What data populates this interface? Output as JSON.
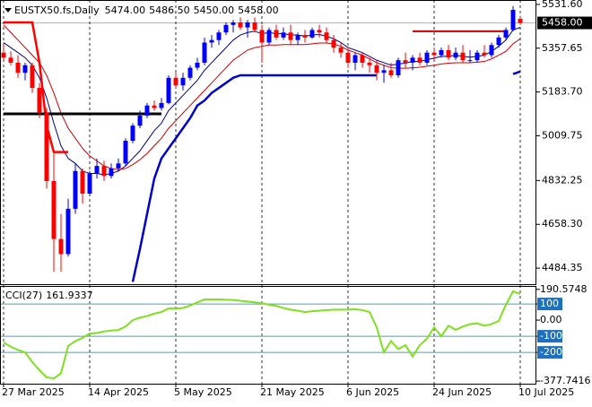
{
  "chart_data": {
    "type": "candlestick",
    "symbol": "EUSTX50.fs,Daily",
    "ohlc_labels": [
      "5474.00",
      "5486.50",
      "5450.00",
      "5458.00"
    ],
    "categories": [
      "27 Mar 2025",
      null,
      null,
      null,
      null,
      null,
      null,
      null,
      null,
      null,
      null,
      null,
      "14 Apr 2025",
      null,
      null,
      null,
      null,
      null,
      null,
      null,
      null,
      null,
      null,
      null,
      "5 May 2025",
      null,
      null,
      null,
      null,
      null,
      null,
      null,
      null,
      null,
      null,
      null,
      "21 May 2025",
      null,
      null,
      null,
      null,
      null,
      null,
      null,
      null,
      null,
      null,
      null,
      "6 Jun 2025",
      null,
      null,
      null,
      null,
      null,
      null,
      null,
      null,
      null,
      null,
      null,
      "24 Jun 2025",
      null,
      null,
      null,
      null,
      null,
      null,
      null,
      null,
      null,
      null,
      null,
      "10 Jul 2025"
    ],
    "open": [
      5340,
      5320,
      5300,
      5260,
      5290,
      5200,
      5100,
      4830,
      4600,
      4540,
      4720,
      4870,
      4780,
      4860,
      4890,
      4850,
      4880,
      4900,
      4990,
      5050,
      5090,
      5130,
      5120,
      5140,
      5240,
      5210,
      5240,
      5280,
      5300,
      5380,
      5390,
      5420,
      5450,
      5460,
      5440,
      5460,
      5430,
      5380,
      5430,
      5400,
      5420,
      5390,
      5410,
      5400,
      5430,
      5420,
      5390,
      5360,
      5340,
      5300,
      5330,
      5300,
      5290,
      5260,
      5270,
      5250,
      5310,
      5300,
      5320,
      5300,
      5340,
      5330,
      5350,
      5320,
      5340,
      5310,
      5310,
      5340,
      5330,
      5370,
      5400,
      5430,
      5474
    ],
    "high": [
      5370,
      5345,
      5330,
      5300,
      5300,
      5220,
      5120,
      4940,
      4700,
      4760,
      4900,
      4880,
      4870,
      4920,
      4910,
      4900,
      4920,
      5000,
      5060,
      5110,
      5140,
      5150,
      5160,
      5250,
      5260,
      5260,
      5290,
      5320,
      5400,
      5410,
      5430,
      5460,
      5470,
      5480,
      5470,
      5480,
      5450,
      5440,
      5450,
      5440,
      5450,
      5420,
      5430,
      5440,
      5450,
      5440,
      5410,
      5380,
      5360,
      5340,
      5340,
      5320,
      5310,
      5290,
      5300,
      5320,
      5340,
      5330,
      5340,
      5350,
      5360,
      5360,
      5370,
      5360,
      5370,
      5350,
      5350,
      5370,
      5380,
      5410,
      5440,
      5525,
      5486.5
    ],
    "low": [
      5310,
      5290,
      5240,
      5230,
      5180,
      5080,
      4800,
      4470,
      4470,
      4530,
      4700,
      4740,
      4770,
      4840,
      4830,
      4840,
      4870,
      4890,
      4980,
      5040,
      5080,
      5110,
      5110,
      5135,
      5200,
      5190,
      5230,
      5270,
      5290,
      5360,
      5370,
      5410,
      5420,
      5430,
      5400,
      5420,
      5300,
      5370,
      5390,
      5390,
      5370,
      5370,
      5380,
      5395,
      5400,
      5380,
      5340,
      5320,
      5280,
      5270,
      5280,
      5260,
      5230,
      5220,
      5240,
      5240,
      5280,
      5270,
      5290,
      5290,
      5310,
      5320,
      5310,
      5310,
      5300,
      5300,
      5300,
      5320,
      5320,
      5360,
      5390,
      5425,
      5450
    ],
    "close": [
      5320,
      5300,
      5260,
      5290,
      5200,
      5100,
      4830,
      4600,
      4540,
      4720,
      4870,
      4780,
      4860,
      4890,
      4850,
      4880,
      4900,
      4990,
      5050,
      5090,
      5130,
      5120,
      5140,
      5240,
      5210,
      5240,
      5280,
      5300,
      5380,
      5390,
      5420,
      5450,
      5460,
      5440,
      5460,
      5430,
      5380,
      5430,
      5400,
      5420,
      5390,
      5410,
      5400,
      5430,
      5420,
      5390,
      5360,
      5340,
      5300,
      5330,
      5300,
      5290,
      5260,
      5270,
      5250,
      5310,
      5300,
      5320,
      5300,
      5340,
      5330,
      5350,
      5320,
      5340,
      5310,
      5310,
      5340,
      5330,
      5370,
      5400,
      5430,
      5510,
      5458
    ],
    "up_color": "#0000ff",
    "down_color": "#ff0000",
    "overlays": [
      {
        "color": "#000080",
        "width": 1,
        "values": [
          5380,
          5360,
          5340,
          5320,
          5290,
          5240,
          5160,
          5060,
          4970,
          4920,
          4900,
          4870,
          4860,
          4860,
          4855,
          4860,
          4870,
          4890,
          4920,
          4950,
          4990,
          5030,
          5060,
          5110,
          5140,
          5170,
          5200,
          5230,
          5270,
          5300,
          5330,
          5360,
          5390,
          5410,
          5420,
          5425,
          5415,
          5420,
          5415,
          5415,
          5410,
          5410,
          5405,
          5410,
          5412,
          5405,
          5395,
          5380,
          5360,
          5350,
          5340,
          5325,
          5310,
          5300,
          5290,
          5295,
          5298,
          5305,
          5305,
          5312,
          5318,
          5325,
          5325,
          5330,
          5325,
          5322,
          5325,
          5330,
          5345,
          5365,
          5390,
          5430,
          5440
        ]
      },
      {
        "color": "#cc0000",
        "width": 1,
        "values": [
          5450,
          5420,
          5390,
          5360,
          5330,
          5300,
          5250,
          5180,
          5100,
          5040,
          5000,
          4960,
          4930,
          4910,
          4890,
          4880,
          4875,
          4880,
          4895,
          4915,
          4940,
          4970,
          5000,
          5040,
          5070,
          5100,
          5130,
          5160,
          5190,
          5220,
          5250,
          5280,
          5310,
          5330,
          5350,
          5360,
          5365,
          5370,
          5370,
          5372,
          5372,
          5372,
          5372,
          5375,
          5378,
          5378,
          5375,
          5365,
          5350,
          5340,
          5330,
          5315,
          5300,
          5290,
          5280,
          5278,
          5278,
          5280,
          5282,
          5286,
          5290,
          5295,
          5298,
          5300,
          5300,
          5300,
          5302,
          5305,
          5315,
          5330,
          5345,
          5375,
          5395
        ]
      },
      {
        "color": "#ff0000",
        "width": 2.5,
        "values": [
          5460,
          5460,
          5460,
          5460,
          5460,
          5300,
          5050,
          4945,
          4945,
          4945,
          null,
          null,
          null,
          null,
          null,
          null,
          null,
          null,
          null,
          null,
          null,
          null,
          null,
          null,
          null,
          null,
          null,
          null,
          null,
          null,
          null,
          null,
          null,
          null,
          null,
          null,
          null,
          null,
          null,
          null,
          null,
          null,
          null,
          null,
          null,
          null,
          null,
          null,
          null,
          null,
          null,
          null,
          null,
          null,
          null,
          null,
          null,
          null,
          null,
          null,
          null,
          null,
          null,
          null,
          null,
          null,
          null,
          null,
          null,
          null,
          null,
          null,
          null
        ]
      },
      {
        "color": "#000000",
        "width": 3,
        "values": [
          5097,
          5097,
          5097,
          5097,
          5097,
          5097,
          5097,
          5097,
          5097,
          5097,
          5097,
          5097,
          5097,
          5097,
          5097,
          5097,
          5097,
          5097,
          5097,
          5097,
          5097,
          5097,
          5097,
          null,
          null,
          null,
          null,
          null,
          null,
          null,
          null,
          null,
          null,
          null,
          null,
          null,
          null,
          null,
          null,
          null,
          null,
          null,
          null,
          null,
          null,
          null,
          null,
          null,
          null,
          null,
          null,
          null,
          null,
          null,
          null,
          null,
          null,
          null,
          null,
          null,
          null,
          null,
          null,
          null,
          null,
          null,
          null,
          null,
          null,
          null,
          null,
          null,
          null
        ]
      },
      {
        "color": "#0000cc",
        "width": 2.5,
        "values": [
          null,
          null,
          null,
          null,
          null,
          null,
          null,
          null,
          null,
          null,
          null,
          null,
          null,
          null,
          null,
          null,
          null,
          null,
          4430,
          4560,
          4700,
          4840,
          4920,
          4960,
          5000,
          5040,
          5080,
          5130,
          5150,
          5180,
          5200,
          5220,
          5240,
          5250,
          5250,
          5250,
          5250,
          5250,
          5250,
          5250,
          5250,
          5250,
          5250,
          5250,
          5250,
          5250,
          5250,
          5250,
          5250,
          5250,
          5250,
          5250,
          5250,
          null,
          null,
          null,
          null,
          null,
          null,
          null,
          null,
          null,
          null,
          null,
          null,
          null,
          null,
          null,
          null,
          null,
          null,
          5255,
          5265
        ]
      },
      {
        "color": "#cc0000",
        "width": 2,
        "values": [
          null,
          null,
          null,
          null,
          null,
          null,
          null,
          null,
          null,
          null,
          null,
          null,
          null,
          null,
          null,
          null,
          null,
          null,
          null,
          null,
          null,
          null,
          null,
          null,
          null,
          null,
          null,
          null,
          null,
          null,
          null,
          null,
          null,
          null,
          null,
          null,
          null,
          null,
          null,
          null,
          null,
          null,
          null,
          null,
          null,
          null,
          null,
          null,
          null,
          null,
          null,
          null,
          null,
          null,
          null,
          null,
          null,
          5425,
          5425,
          5425,
          5425,
          5425,
          5425,
          5425,
          5425,
          5425,
          5425,
          5425,
          5425,
          5425,
          5425,
          null,
          null
        ]
      }
    ],
    "ylim": [
      4417,
      5549
    ],
    "yticks": [
      {
        "value": 5531.6,
        "label": "5531.60"
      },
      {
        "value": 5357.65,
        "label": "5357.65"
      },
      {
        "value": 5183.7,
        "label": "5183.70"
      },
      {
        "value": 5009.75,
        "label": "5009.75"
      },
      {
        "value": 4832.25,
        "label": "4832.25"
      },
      {
        "value": 4658.3,
        "label": "4658.30"
      },
      {
        "value": 4484.35,
        "label": "4484.35"
      }
    ],
    "last_price": {
      "value": 5458,
      "label": "5458.00"
    },
    "grid": true,
    "cci": {
      "type": "line",
      "label": "CCI(27)",
      "color": "#7fe020",
      "values": [
        -139,
        -165,
        -185,
        -200,
        -260,
        -310,
        -355,
        -361,
        -330,
        -160,
        -130,
        -110,
        -83,
        -80,
        -70,
        -65,
        -61,
        -40,
        0,
        15,
        25,
        40,
        50,
        72,
        72,
        75,
        90,
        110,
        128,
        128,
        128,
        126,
        125,
        120,
        115,
        110,
        105,
        95,
        88,
        75,
        65,
        58,
        50,
        55,
        58,
        62,
        64,
        65,
        65,
        68,
        62,
        50,
        -45,
        -200,
        -130,
        -180,
        -155,
        -225,
        -155,
        -115,
        -45,
        -100,
        -35,
        -60,
        -40,
        -25,
        -20,
        -35,
        -25,
        -5,
        95,
        178,
        161.9337
      ],
      "ylim": [
        -394,
        206
      ],
      "yticks": [
        190.5748,
        100,
        {
          "value": 0,
          "label": "0.00"
        },
        -100,
        -200,
        -377.7416
      ],
      "levels": [
        100,
        -100,
        -200
      ],
      "level_color": "#4f9fb0"
    }
  }
}
